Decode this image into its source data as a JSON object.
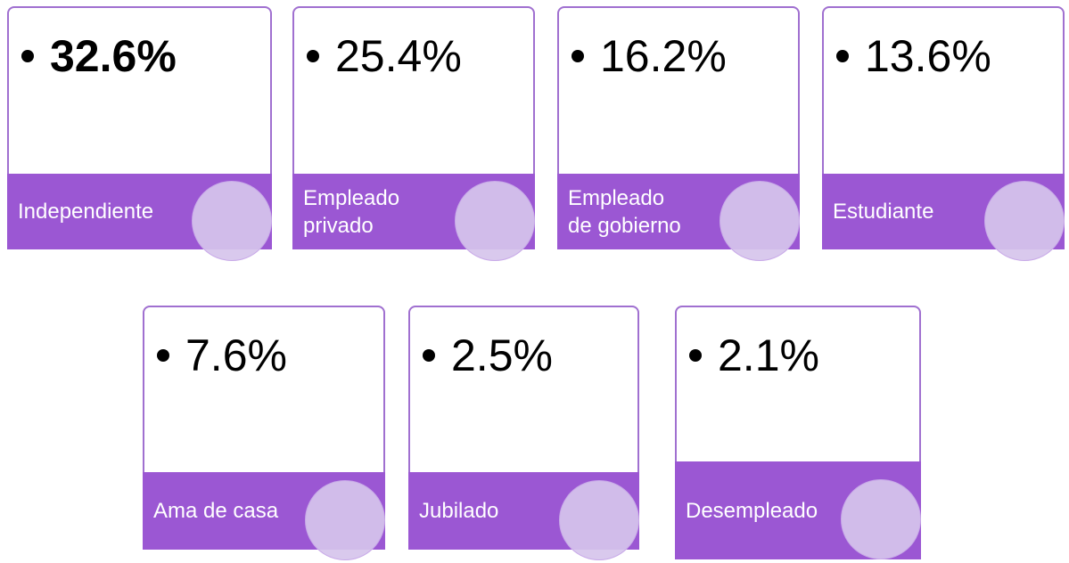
{
  "cards": [
    {
      "value": "32.6%",
      "label": [
        "Independiente"
      ],
      "bold": true
    },
    {
      "value": "25.4%",
      "label": [
        "Empleado",
        "privado"
      ]
    },
    {
      "value": "16.2%",
      "label": [
        "Empleado",
        "de gobierno"
      ]
    },
    {
      "value": "13.6%",
      "label": [
        "Estudiante"
      ]
    },
    {
      "value": "7.6%",
      "label": [
        "Ama de casa"
      ]
    },
    {
      "value": "2.5%",
      "label": [
        "Jubilado"
      ]
    },
    {
      "value": "2.1%",
      "label": [
        "Desempleado"
      ]
    }
  ]
}
